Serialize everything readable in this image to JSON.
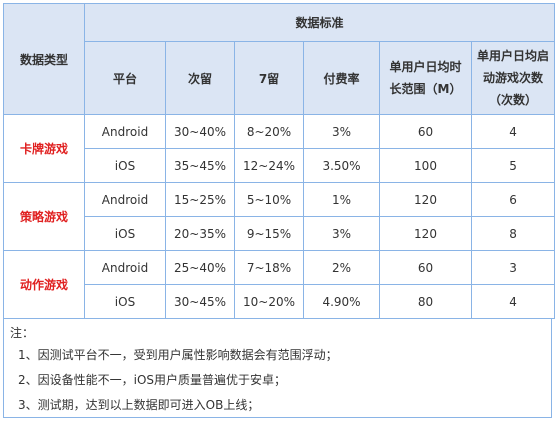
{
  "table": {
    "col_data_type": "数据类型",
    "col_data_standard": "数据标准",
    "col_platform": "平台",
    "col_d1": "次留",
    "col_d7": "7留",
    "col_pay_rate": "付费率",
    "col_daily_time": "单用户日均时长范围（M）",
    "col_daily_launches": "单用户日均启动游戏次数（次数）",
    "categories": [
      {
        "name": "卡牌游戏",
        "rows": [
          {
            "platform": "Android",
            "d1": "30~40%",
            "d7": "8~20%",
            "pay_rate": "3%",
            "daily_time": "60",
            "daily_launches": "4"
          },
          {
            "platform": "iOS",
            "d1": "35~45%",
            "d7": "12~24%",
            "pay_rate": "3.50%",
            "daily_time": "100",
            "daily_launches": "5"
          }
        ]
      },
      {
        "name": "策略游戏",
        "rows": [
          {
            "platform": "Android",
            "d1": "15~25%",
            "d7": "5~10%",
            "pay_rate": "1%",
            "daily_time": "120",
            "daily_launches": "6"
          },
          {
            "platform": "iOS",
            "d1": "20~35%",
            "d7": "9~15%",
            "pay_rate": "3%",
            "daily_time": "120",
            "daily_launches": "8"
          }
        ]
      },
      {
        "name": "动作游戏",
        "rows": [
          {
            "platform": "Android",
            "d1": "25~40%",
            "d7": "7~18%",
            "pay_rate": "2%",
            "daily_time": "60",
            "daily_launches": "3"
          },
          {
            "platform": "iOS",
            "d1": "30~45%",
            "d7": "10~20%",
            "pay_rate": "4.90%",
            "daily_time": "80",
            "daily_launches": "4"
          }
        ]
      }
    ]
  },
  "notes": {
    "title": "注：",
    "items": [
      "1、因测试平台不一，受到用户属性影响数据会有范围浮动；",
      "2、因设备性能不一，iOS用户质量普遍优于安卓；",
      "3、测试期，达到以上数据即可进入OB上线；"
    ]
  },
  "colors": {
    "header_bg": "#dbe5f4",
    "border": "#8ab4e6",
    "category_text": "#e02020"
  }
}
